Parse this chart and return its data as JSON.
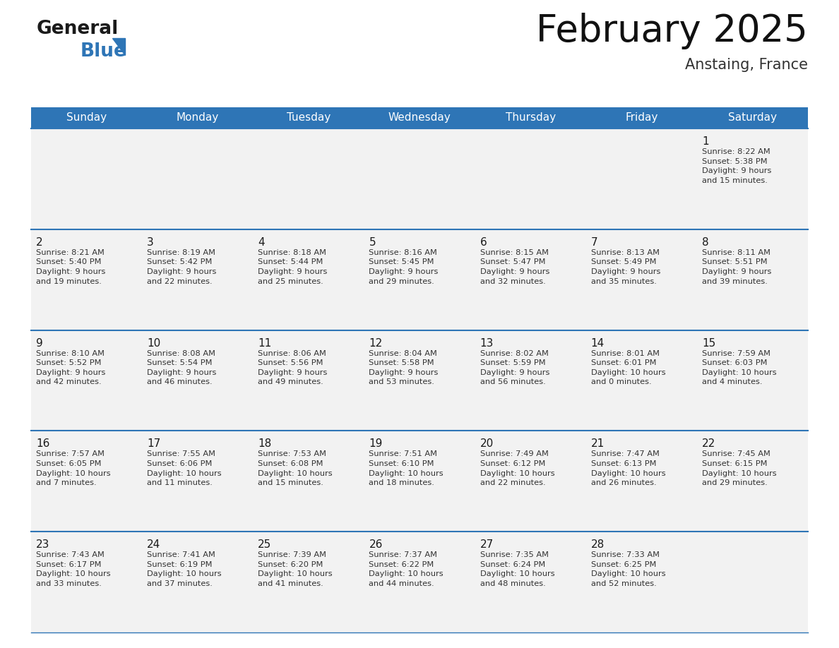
{
  "title": "February 2025",
  "subtitle": "Anstaing, France",
  "header_bg_color": "#2e75b6",
  "header_text_color": "#ffffff",
  "days_of_week": [
    "Sunday",
    "Monday",
    "Tuesday",
    "Wednesday",
    "Thursday",
    "Friday",
    "Saturday"
  ],
  "bg_color": "#ffffff",
  "cell_bg_color": "#f2f2f2",
  "day_number_color": "#1a1a1a",
  "info_text_color": "#333333",
  "line_color": "#2e75b6",
  "calendar": [
    [
      {
        "day": null,
        "info": ""
      },
      {
        "day": null,
        "info": ""
      },
      {
        "day": null,
        "info": ""
      },
      {
        "day": null,
        "info": ""
      },
      {
        "day": null,
        "info": ""
      },
      {
        "day": null,
        "info": ""
      },
      {
        "day": 1,
        "info": "Sunrise: 8:22 AM\nSunset: 5:38 PM\nDaylight: 9 hours\nand 15 minutes."
      }
    ],
    [
      {
        "day": 2,
        "info": "Sunrise: 8:21 AM\nSunset: 5:40 PM\nDaylight: 9 hours\nand 19 minutes."
      },
      {
        "day": 3,
        "info": "Sunrise: 8:19 AM\nSunset: 5:42 PM\nDaylight: 9 hours\nand 22 minutes."
      },
      {
        "day": 4,
        "info": "Sunrise: 8:18 AM\nSunset: 5:44 PM\nDaylight: 9 hours\nand 25 minutes."
      },
      {
        "day": 5,
        "info": "Sunrise: 8:16 AM\nSunset: 5:45 PM\nDaylight: 9 hours\nand 29 minutes."
      },
      {
        "day": 6,
        "info": "Sunrise: 8:15 AM\nSunset: 5:47 PM\nDaylight: 9 hours\nand 32 minutes."
      },
      {
        "day": 7,
        "info": "Sunrise: 8:13 AM\nSunset: 5:49 PM\nDaylight: 9 hours\nand 35 minutes."
      },
      {
        "day": 8,
        "info": "Sunrise: 8:11 AM\nSunset: 5:51 PM\nDaylight: 9 hours\nand 39 minutes."
      }
    ],
    [
      {
        "day": 9,
        "info": "Sunrise: 8:10 AM\nSunset: 5:52 PM\nDaylight: 9 hours\nand 42 minutes."
      },
      {
        "day": 10,
        "info": "Sunrise: 8:08 AM\nSunset: 5:54 PM\nDaylight: 9 hours\nand 46 minutes."
      },
      {
        "day": 11,
        "info": "Sunrise: 8:06 AM\nSunset: 5:56 PM\nDaylight: 9 hours\nand 49 minutes."
      },
      {
        "day": 12,
        "info": "Sunrise: 8:04 AM\nSunset: 5:58 PM\nDaylight: 9 hours\nand 53 minutes."
      },
      {
        "day": 13,
        "info": "Sunrise: 8:02 AM\nSunset: 5:59 PM\nDaylight: 9 hours\nand 56 minutes."
      },
      {
        "day": 14,
        "info": "Sunrise: 8:01 AM\nSunset: 6:01 PM\nDaylight: 10 hours\nand 0 minutes."
      },
      {
        "day": 15,
        "info": "Sunrise: 7:59 AM\nSunset: 6:03 PM\nDaylight: 10 hours\nand 4 minutes."
      }
    ],
    [
      {
        "day": 16,
        "info": "Sunrise: 7:57 AM\nSunset: 6:05 PM\nDaylight: 10 hours\nand 7 minutes."
      },
      {
        "day": 17,
        "info": "Sunrise: 7:55 AM\nSunset: 6:06 PM\nDaylight: 10 hours\nand 11 minutes."
      },
      {
        "day": 18,
        "info": "Sunrise: 7:53 AM\nSunset: 6:08 PM\nDaylight: 10 hours\nand 15 minutes."
      },
      {
        "day": 19,
        "info": "Sunrise: 7:51 AM\nSunset: 6:10 PM\nDaylight: 10 hours\nand 18 minutes."
      },
      {
        "day": 20,
        "info": "Sunrise: 7:49 AM\nSunset: 6:12 PM\nDaylight: 10 hours\nand 22 minutes."
      },
      {
        "day": 21,
        "info": "Sunrise: 7:47 AM\nSunset: 6:13 PM\nDaylight: 10 hours\nand 26 minutes."
      },
      {
        "day": 22,
        "info": "Sunrise: 7:45 AM\nSunset: 6:15 PM\nDaylight: 10 hours\nand 29 minutes."
      }
    ],
    [
      {
        "day": 23,
        "info": "Sunrise: 7:43 AM\nSunset: 6:17 PM\nDaylight: 10 hours\nand 33 minutes."
      },
      {
        "day": 24,
        "info": "Sunrise: 7:41 AM\nSunset: 6:19 PM\nDaylight: 10 hours\nand 37 minutes."
      },
      {
        "day": 25,
        "info": "Sunrise: 7:39 AM\nSunset: 6:20 PM\nDaylight: 10 hours\nand 41 minutes."
      },
      {
        "day": 26,
        "info": "Sunrise: 7:37 AM\nSunset: 6:22 PM\nDaylight: 10 hours\nand 44 minutes."
      },
      {
        "day": 27,
        "info": "Sunrise: 7:35 AM\nSunset: 6:24 PM\nDaylight: 10 hours\nand 48 minutes."
      },
      {
        "day": 28,
        "info": "Sunrise: 7:33 AM\nSunset: 6:25 PM\nDaylight: 10 hours\nand 52 minutes."
      },
      {
        "day": null,
        "info": ""
      }
    ]
  ],
  "logo_general_color": "#1a1a1a",
  "logo_blue_color": "#2e75b6",
  "logo_triangle_color": "#2e75b6",
  "figwidth": 11.88,
  "figheight": 9.18,
  "dpi": 100
}
